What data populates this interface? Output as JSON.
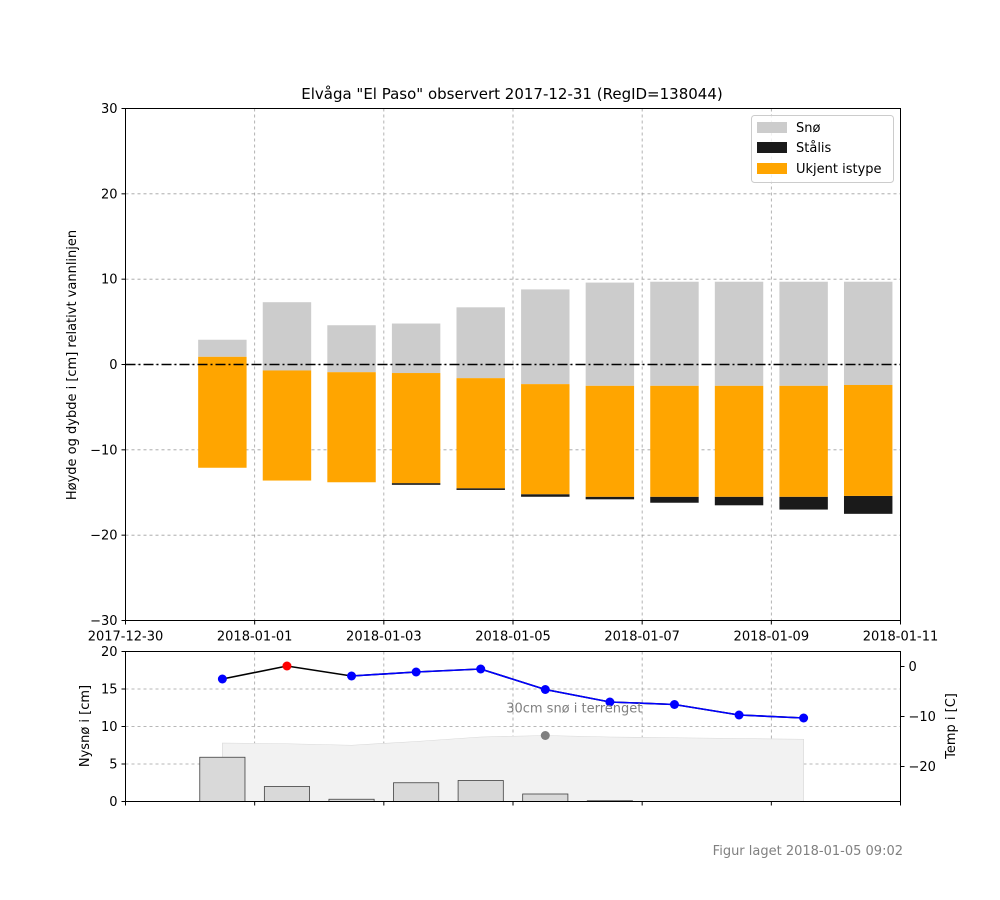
{
  "chart_data": [
    {
      "type": "bar",
      "title": "Elvåga \"El Paso\" observert 2017-12-31 (RegID=138044)",
      "ylabel": "Høyde og dybde i [cm] relativt vannlinjen",
      "ylim": [
        -30,
        30
      ],
      "xlim": [
        "2017-12-30",
        "2018-01-11"
      ],
      "grid": true,
      "legend_position": "top-right",
      "x_ticks": [
        "2017-12-30",
        "2018-01-01",
        "2018-01-03",
        "2018-01-05",
        "2018-01-07",
        "2018-01-09",
        "2018-01-11"
      ],
      "y_ticks": [
        -30,
        -20,
        -10,
        0,
        10,
        20,
        30
      ],
      "categories": [
        "2017-12-31",
        "2018-01-01",
        "2018-01-02",
        "2018-01-03",
        "2018-01-04",
        "2018-01-05",
        "2018-01-06",
        "2018-01-07",
        "2018-01-08",
        "2018-01-09",
        "2018-01-10"
      ],
      "series": [
        {
          "name": "Snø",
          "color": "#cccccc",
          "bottom": [
            0.9,
            -0.7,
            -0.9,
            -1.0,
            -1.6,
            -2.3,
            -2.5,
            -2.5,
            -2.5,
            -2.5,
            -2.4
          ],
          "top": [
            2.9,
            7.3,
            4.6,
            4.8,
            6.7,
            8.8,
            9.6,
            9.7,
            9.7,
            9.7,
            9.7
          ]
        },
        {
          "name": "Stålis",
          "color": "#1a1a1a",
          "bottom": [
            -12.1,
            -13.6,
            -13.8,
            -14.1,
            -14.7,
            -15.5,
            -15.8,
            -16.2,
            -16.5,
            -17.0,
            -17.5
          ],
          "top": [
            -12.1,
            -13.6,
            -13.8,
            -13.9,
            -14.5,
            -15.2,
            -15.5,
            -15.5,
            -15.5,
            -15.5,
            -15.4
          ]
        },
        {
          "name": "Ukjent istype",
          "color": "#ffa500",
          "bottom": [
            -12.1,
            -13.6,
            -13.8,
            -13.9,
            -14.5,
            -15.2,
            -15.5,
            -15.5,
            -15.5,
            -15.5,
            -15.4
          ],
          "top": [
            0.9,
            -0.7,
            -0.9,
            -1.0,
            -1.6,
            -2.3,
            -2.5,
            -2.5,
            -2.5,
            -2.5,
            -2.4
          ]
        }
      ]
    },
    {
      "type": "bar",
      "ylabel": "Nysnø i [cm]",
      "ylim": [
        0,
        20
      ],
      "y_ticks": [
        0,
        5,
        10,
        15,
        20
      ],
      "categories": [
        "2017-12-31",
        "2018-01-01",
        "2018-01-02",
        "2018-01-03",
        "2018-01-04",
        "2018-01-05",
        "2018-01-06"
      ],
      "values": [
        5.9,
        2.0,
        0.3,
        2.5,
        2.8,
        1.0,
        0.1
      ],
      "color": "#d9d9d9",
      "terrain_snow": {
        "x": [
          "2017-12-31",
          "2018-01-01",
          "2018-01-02",
          "2018-01-03",
          "2018-01-04",
          "2018-01-05",
          "2018-01-06",
          "2018-01-07",
          "2018-01-08",
          "2018-01-09"
        ],
        "values": [
          7.8,
          7.7,
          7.5,
          8.0,
          8.6,
          8.8,
          8.6,
          8.5,
          8.4,
          8.3
        ],
        "color": "#f2f2f2"
      },
      "annotation": {
        "text": "30cm snø i terrenget",
        "x": "2018-01-05",
        "y": 8.8
      }
    },
    {
      "type": "line",
      "ylabel": "Temp i [C]",
      "ylim": [
        -27,
        3
      ],
      "y_ticks": [
        0,
        -10,
        -20
      ],
      "x": [
        "2017-12-31",
        "2018-01-01",
        "2018-01-02",
        "2018-01-03",
        "2018-01-04",
        "2018-01-05",
        "2018-01-06",
        "2018-01-07",
        "2018-01-08",
        "2018-01-09"
      ],
      "values": [
        -2.5,
        0.1,
        -1.9,
        -1.1,
        -0.5,
        -4.6,
        -7.1,
        -7.6,
        -9.7,
        -10.3
      ],
      "colors": {
        "positive": "#ff0000",
        "negative": "#0000ff",
        "line": "#000000"
      }
    }
  ],
  "footer": "Figur laget 2018-01-05 09:02"
}
